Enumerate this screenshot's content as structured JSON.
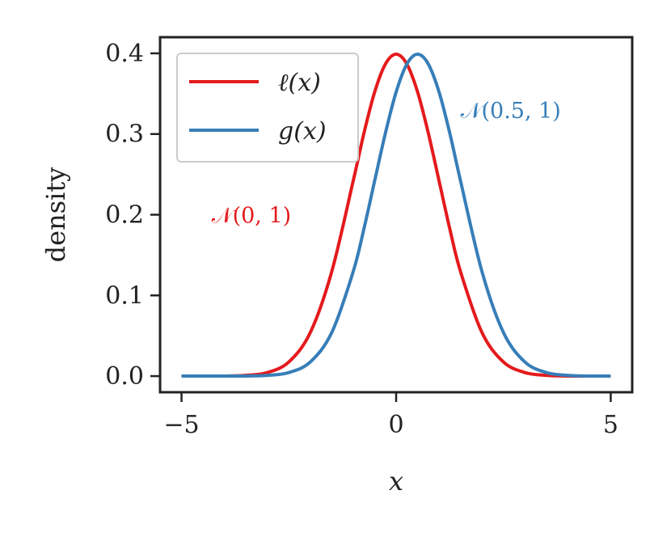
{
  "chart_data": {
    "type": "line",
    "xlabel": "x",
    "ylabel": "density",
    "xlim": [
      -5.5,
      5.5
    ],
    "ylim": [
      -0.02,
      0.42
    ],
    "xticks": [
      -5,
      0,
      5
    ],
    "xtick_labels": [
      "−5",
      "0",
      "5"
    ],
    "yticks": [
      0.0,
      0.1,
      0.2,
      0.3,
      0.4
    ],
    "ytick_labels": [
      "0.0",
      "0.1",
      "0.2",
      "0.3",
      "0.4"
    ],
    "grid": false,
    "legend_position": "top-left",
    "x": [
      -5.0,
      -4.5,
      -4.0,
      -3.5,
      -3.0,
      -2.5,
      -2.0,
      -1.5,
      -1.0,
      -0.75,
      -0.5,
      -0.25,
      0.0,
      0.25,
      0.5,
      0.75,
      1.0,
      1.25,
      1.5,
      2.0,
      2.5,
      3.0,
      3.5,
      4.0,
      4.5,
      5.0
    ],
    "series": [
      {
        "name": "ℓ(x)",
        "color": "#e41a1c",
        "values": [
          0.0,
          0.0,
          0.0001,
          0.0009,
          0.0044,
          0.0175,
          0.054,
          0.1295,
          0.242,
          0.3011,
          0.3521,
          0.3867,
          0.3989,
          0.3867,
          0.3521,
          0.3011,
          0.242,
          0.1826,
          0.1295,
          0.054,
          0.0175,
          0.0044,
          0.0009,
          0.0001,
          0.0,
          0.0
        ]
      },
      {
        "name": "g(x)",
        "color": "#377eb8",
        "values": [
          0.0,
          0.0,
          0.0,
          0.0001,
          0.0009,
          0.0044,
          0.0175,
          0.054,
          0.1295,
          0.1826,
          0.242,
          0.3011,
          0.3521,
          0.3867,
          0.3989,
          0.3867,
          0.3521,
          0.3011,
          0.242,
          0.1295,
          0.054,
          0.0175,
          0.0044,
          0.0009,
          0.0001,
          0.0
        ]
      }
    ],
    "annotations": [
      {
        "text": "𝒩(0, 1)",
        "x": -4.3,
        "y": 0.2,
        "color": "#e41a1c"
      },
      {
        "text": "𝒩(0.5, 1)",
        "x": 1.5,
        "y": 0.33,
        "color": "#377eb8"
      }
    ]
  }
}
